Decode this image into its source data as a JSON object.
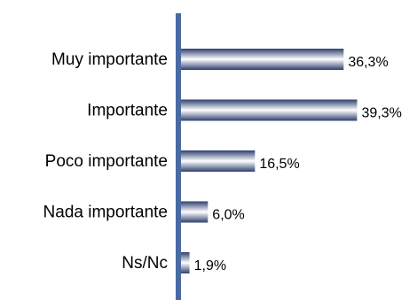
{
  "chart_data": {
    "type": "bar",
    "orientation": "horizontal",
    "title": "",
    "xlabel": "",
    "ylabel": "",
    "categories": [
      "Muy importante",
      "Importante",
      "Poco importante",
      "Nada importante",
      "Ns/Nc"
    ],
    "values": [
      36.3,
      39.3,
      16.5,
      6.0,
      1.9
    ],
    "value_labels": [
      "36,3%",
      "39,3%",
      "16,5%",
      "6,0%",
      "1,9%"
    ],
    "unit": "%",
    "xlim": [
      0,
      40
    ],
    "grid": false,
    "legend": "none",
    "colors": {
      "axis": "#4a6aa3",
      "bar_dark": "#2d3f6e",
      "bar_light": "#ffffff"
    }
  }
}
